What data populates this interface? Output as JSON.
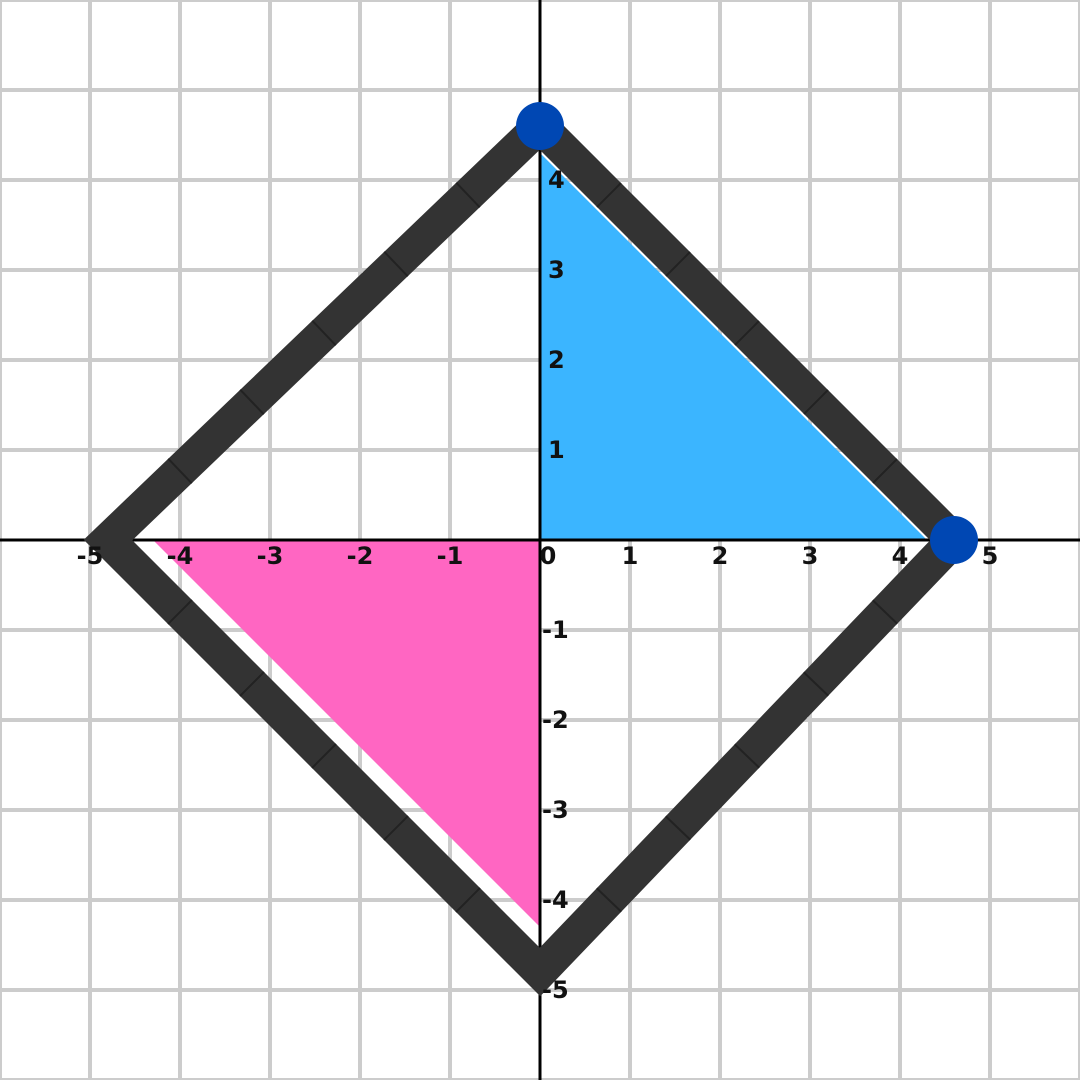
{
  "x_axis": {
    "labels": [
      "-5",
      "-4",
      "-3",
      "-2",
      "-1",
      "0",
      "1",
      "2",
      "3",
      "4",
      "5"
    ],
    "values": [
      -5,
      -4,
      -3,
      -2,
      -1,
      0,
      1,
      2,
      3,
      4,
      5
    ]
  },
  "y_axis": {
    "labels": [
      "4",
      "3",
      "2",
      "1",
      "-1",
      "-2",
      "-3",
      "-4",
      "-5"
    ],
    "values": [
      4,
      3,
      2,
      1,
      -1,
      -2,
      -3,
      -4,
      -5
    ]
  },
  "range": {
    "x": [
      -6,
      6
    ],
    "y": [
      -6,
      6
    ]
  },
  "grid": true,
  "shapes": {
    "square": {
      "vertices": [
        [
          0,
          4.6
        ],
        [
          4.6,
          0
        ],
        [
          0,
          -4.8
        ],
        [
          -4.8,
          0
        ]
      ],
      "color": "#333333"
    },
    "blue_triangle": {
      "vertices": [
        [
          0,
          4.3
        ],
        [
          4.3,
          0
        ],
        [
          0,
          0
        ]
      ],
      "color": "#3bb5ff"
    },
    "pink_triangle": {
      "vertices": [
        [
          -4.3,
          0
        ],
        [
          0,
          0
        ],
        [
          0,
          -4.3
        ]
      ],
      "color": "#ff66c2"
    }
  },
  "points": [
    {
      "x": 0,
      "y": 4.6,
      "color": "#0047b3"
    },
    {
      "x": 4.6,
      "y": 0,
      "color": "#0047b3"
    }
  ],
  "colors": {
    "grid": "#cccccc",
    "axes": "#000000",
    "background": "#ffffff"
  }
}
